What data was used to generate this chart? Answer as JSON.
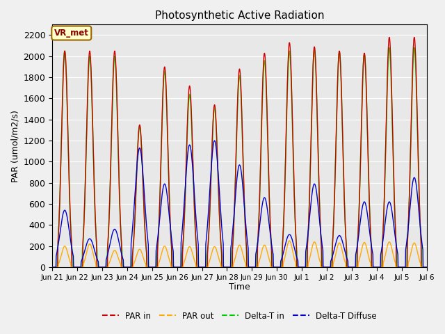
{
  "title": "Photosynthetic Active Radiation",
  "ylabel": "PAR (umol/m2/s)",
  "xlabel": "Time",
  "annotation": "VR_met",
  "ylim": [
    0,
    2300
  ],
  "background_color": "#e8e8e8",
  "legend_entries": [
    "PAR in",
    "PAR out",
    "Delta-T in",
    "Delta-T Diffuse"
  ],
  "legend_colors": [
    "#cc0000",
    "#ffaa00",
    "#00cc00",
    "#0000cc"
  ],
  "xtick_labels": [
    "Jun 21",
    "Jun 22",
    "Jun 23",
    "Jun 24",
    "Jun 25",
    "Jun 26",
    "Jun 27",
    "Jun 28",
    "Jun 29",
    "Jun 30",
    "Jul 1",
    "Jul 2",
    "Jul 3",
    "Jul 4",
    "Jul 5",
    "Jul 6"
  ],
  "gridcolor": "white",
  "days": 15,
  "day_peaks_PAR_in": [
    2050,
    2050,
    2050,
    1350,
    1900,
    1720,
    1540,
    1880,
    2030,
    2130,
    2090,
    2050,
    2030,
    2180,
    2180
  ],
  "day_peaks_PAR_out": [
    200,
    220,
    160,
    170,
    200,
    195,
    195,
    210,
    210,
    250,
    240,
    230,
    235,
    240,
    230
  ],
  "day_peaks_DeltaT_in": [
    2050,
    2000,
    2000,
    1340,
    1860,
    1640,
    1510,
    1820,
    1960,
    2050,
    2060,
    2040,
    2020,
    2080,
    2080
  ],
  "day_peaks_DeltaT_diffuse": [
    540,
    270,
    360,
    1130,
    790,
    1160,
    1200,
    970,
    660,
    310,
    790,
    300,
    620,
    620,
    850
  ]
}
